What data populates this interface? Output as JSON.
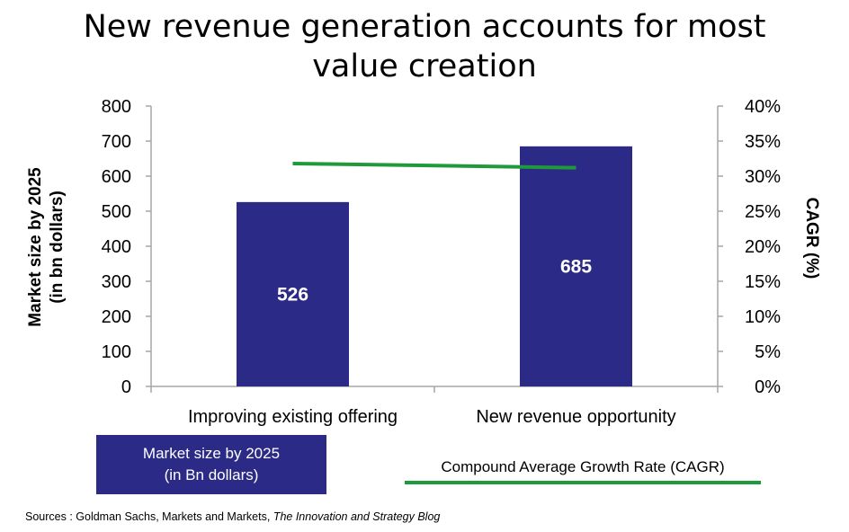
{
  "title_line1": "New revenue generation accounts for most",
  "title_line2": "value creation",
  "left_axis_label_line1": "Market size by 2025",
  "left_axis_label_line2": "(in bn dollars)",
  "right_axis_label": "CAGR (%)",
  "legend": {
    "bar_label_line1": "Market size by 2025",
    "bar_label_line2": "(in Bn dollars)",
    "line_label": "Compound Average Growth Rate (CAGR)"
  },
  "sources_prefix": "Sources : Goldman Sachs, Markets and Markets, ",
  "sources_italic": "The Innovation and Strategy Blog",
  "colors": {
    "bar": "#2b2a86",
    "line": "#1e9a3a"
  },
  "chart_data": {
    "type": "bar",
    "categories": [
      "Improving existing offering",
      "New revenue opportunity"
    ],
    "series": [
      {
        "name": "Market size by 2025 (in Bn dollars)",
        "axis": "left",
        "type": "bar",
        "values": [
          526,
          685
        ],
        "data_labels": [
          "526",
          "685"
        ]
      },
      {
        "name": "Compound Average Growth Rate (CAGR)",
        "axis": "right",
        "type": "line",
        "values": [
          31.8,
          31.2
        ]
      }
    ],
    "ylim_left": [
      0,
      800
    ],
    "yticks_left": [
      "0",
      "100",
      "200",
      "300",
      "400",
      "500",
      "600",
      "700",
      "800"
    ],
    "ylim_right": [
      0,
      40
    ],
    "yticks_right": [
      "0%",
      "5%",
      "10%",
      "15%",
      "20%",
      "25%",
      "30%",
      "35%",
      "40%"
    ],
    "grid": false,
    "legend_position": "bottom"
  }
}
